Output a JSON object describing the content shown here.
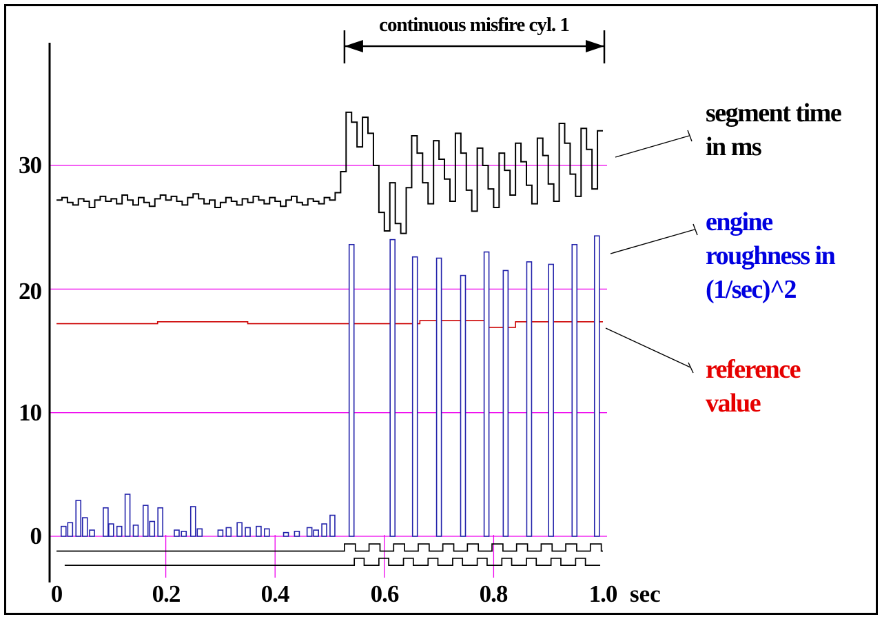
{
  "figure": {
    "background": "#ffffff",
    "border_color": "#000000"
  },
  "axes": {
    "y_tick_labels": [
      "30",
      "20",
      "10",
      "0"
    ],
    "x_tick_labels": [
      "0",
      "0.2",
      "0.4",
      "0.6",
      "0.8",
      "1.0"
    ],
    "unit_label": "sec"
  },
  "legend_labels": {
    "segment_time": {
      "lines": [
        "segment time",
        "in ms"
      ],
      "color": "#000000"
    },
    "engine_roughness": {
      "lines": [
        "engine",
        "roughness in",
        "(1/sec)^2"
      ],
      "color": "#0000e0"
    },
    "reference_value": {
      "lines": [
        "reference",
        "value"
      ],
      "color": "#e60000"
    }
  },
  "colors": {
    "grid": "#ee00ee",
    "segment_time": "#000000",
    "engine_roughness": "#2222aa",
    "reference_value": "#cc0000",
    "misfire_flags": "#000000"
  },
  "chart_data": {
    "type": "line",
    "title": "continuous misfire cyl. 1",
    "xlabel": "sec",
    "ylabel": "",
    "x_range": [
      0,
      1.0
    ],
    "ylim": [
      -3.5,
      39
    ],
    "y_ticks": [
      0,
      10,
      20,
      30
    ],
    "x_ticks": [
      0,
      0.2,
      0.4,
      0.6,
      0.8,
      1.0
    ],
    "x_gridlines_bottom": [
      0.2,
      0.4,
      0.6,
      0.8
    ],
    "grid": "magenta horizontal lines at y ticks, short vertical lines at x ticks below zero",
    "annotation": {
      "text": "continuous misfire cyl. 1",
      "x_start": 0.527,
      "x_end": 1.0
    },
    "series": [
      {
        "name": "reference value",
        "style": "step-points",
        "color": "#cc0000",
        "points": [
          [
            0.0,
            17.2
          ],
          [
            0.185,
            17.35
          ],
          [
            0.35,
            17.2
          ],
          [
            0.665,
            17.45
          ],
          [
            0.79,
            16.9
          ],
          [
            0.84,
            17.35
          ],
          [
            1.0,
            17.35
          ]
        ]
      },
      {
        "name": "engine roughness in (1/sec)^2",
        "style": "spikes",
        "color": "#2222aa",
        "points": [
          [
            0.013,
            0.8
          ],
          [
            0.025,
            1.1
          ],
          [
            0.04,
            2.9
          ],
          [
            0.052,
            1.5
          ],
          [
            0.065,
            0.5
          ],
          [
            0.09,
            2.3
          ],
          [
            0.1,
            1.0
          ],
          [
            0.115,
            0.8
          ],
          [
            0.13,
            3.4
          ],
          [
            0.145,
            0.9
          ],
          [
            0.163,
            2.5
          ],
          [
            0.175,
            1.2
          ],
          [
            0.19,
            2.3
          ],
          [
            0.22,
            0.5
          ],
          [
            0.233,
            0.4
          ],
          [
            0.25,
            2.4
          ],
          [
            0.262,
            0.6
          ],
          [
            0.3,
            0.5
          ],
          [
            0.315,
            0.7
          ],
          [
            0.335,
            1.1
          ],
          [
            0.35,
            0.7
          ],
          [
            0.37,
            0.8
          ],
          [
            0.385,
            0.6
          ],
          [
            0.42,
            0.3
          ],
          [
            0.44,
            0.4
          ],
          [
            0.463,
            0.7
          ],
          [
            0.475,
            0.5
          ],
          [
            0.49,
            1.0
          ],
          [
            0.505,
            1.7
          ],
          [
            0.54,
            23.6
          ],
          [
            0.615,
            24.0
          ],
          [
            0.656,
            22.6
          ],
          [
            0.7,
            22.5
          ],
          [
            0.744,
            21.1
          ],
          [
            0.787,
            23.0
          ],
          [
            0.822,
            21.5
          ],
          [
            0.865,
            22.2
          ],
          [
            0.905,
            22.0
          ],
          [
            0.948,
            23.6
          ],
          [
            0.989,
            24.3
          ]
        ]
      },
      {
        "name": "segment time in ms",
        "style": "step",
        "color": "#000000",
        "x_start": 0.0,
        "x_step": 0.01,
        "values": [
          27.2,
          27.4,
          27.0,
          26.8,
          27.3,
          27.1,
          26.6,
          27.2,
          27.5,
          27.1,
          27.3,
          26.9,
          27.6,
          27.2,
          26.8,
          27.4,
          27.0,
          26.7,
          27.3,
          27.6,
          27.2,
          27.5,
          27.1,
          26.8,
          27.4,
          27.7,
          27.3,
          26.9,
          27.2,
          26.6,
          27.0,
          27.4,
          27.1,
          26.8,
          27.3,
          27.0,
          27.5,
          27.2,
          26.9,
          27.4,
          27.1,
          26.7,
          27.2,
          27.5,
          27.0,
          26.8,
          27.3,
          27.1,
          26.9,
          27.4,
          27.2,
          27.8,
          29.5,
          34.3,
          33.5,
          31.5,
          33.9,
          32.6,
          30.0,
          26.2,
          24.7,
          28.6,
          25.3,
          24.5,
          28.2,
          32.4,
          31.0,
          28.6,
          26.9,
          32.0,
          30.5,
          28.9,
          27.1,
          32.6,
          31.0,
          28.0,
          26.3,
          31.4,
          30.0,
          28.1,
          26.6,
          31.0,
          29.6,
          27.6,
          31.8,
          30.3,
          28.4,
          26.9,
          32.2,
          30.8,
          28.5,
          27.1,
          33.4,
          31.8,
          29.3,
          27.5,
          33.0,
          31.3,
          28.1,
          32.8
        ]
      },
      {
        "name": "misfire detection flag upper",
        "style": "pulse",
        "color": "#000000",
        "baseline": -1.2,
        "high": -0.62,
        "x_start": 0.0,
        "x_end": 1.0,
        "pulses": [
          [
            0.527,
            0.547
          ],
          [
            0.572,
            0.592
          ],
          [
            0.617,
            0.637
          ],
          [
            0.662,
            0.682
          ],
          [
            0.707,
            0.727
          ],
          [
            0.752,
            0.772
          ],
          [
            0.797,
            0.817
          ],
          [
            0.842,
            0.862
          ],
          [
            0.887,
            0.907
          ],
          [
            0.932,
            0.952
          ],
          [
            0.977,
            0.997
          ]
        ]
      },
      {
        "name": "misfire detection flag lower",
        "style": "pulse",
        "color": "#000000",
        "baseline": -2.35,
        "high": -1.78,
        "x_start": 0.015,
        "x_end": 0.995,
        "pulses": [
          [
            0.545,
            0.563
          ],
          [
            0.59,
            0.608
          ],
          [
            0.635,
            0.653
          ],
          [
            0.68,
            0.698
          ],
          [
            0.725,
            0.743
          ],
          [
            0.77,
            0.788
          ],
          [
            0.815,
            0.833
          ],
          [
            0.86,
            0.878
          ],
          [
            0.905,
            0.923
          ],
          [
            0.95,
            0.968
          ]
        ]
      }
    ]
  }
}
